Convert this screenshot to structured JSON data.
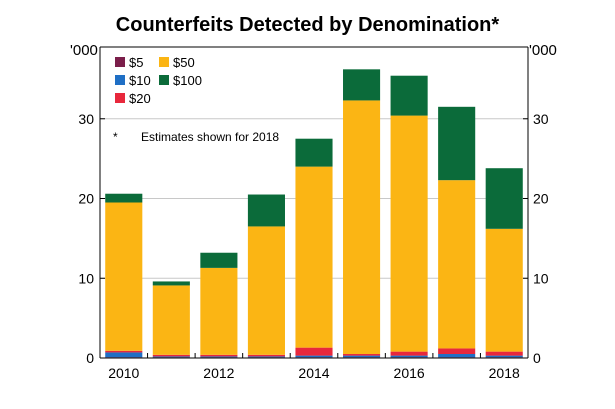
{
  "chart_data": {
    "type": "bar",
    "stacked": true,
    "title": "Counterfeits Detected by Denomination*",
    "units_left": "'000",
    "units_right": "'000",
    "categories": [
      "2010",
      "2011",
      "2012",
      "2013",
      "2014",
      "2015",
      "2016",
      "2017",
      "2018"
    ],
    "x_tick_labels": [
      "2010",
      "2012",
      "2014",
      "2016",
      "2018"
    ],
    "y_ticks": [
      0,
      10,
      20,
      30
    ],
    "ylim": [
      0,
      39
    ],
    "grid": true,
    "legend_position": "top-left",
    "note_marker": "*",
    "note": "Estimates shown for 2018",
    "series": [
      {
        "name": "$5",
        "color": "#7b1e4a",
        "values": [
          0.1,
          0.1,
          0.1,
          0.1,
          0.1,
          0.1,
          0.1,
          0.1,
          0.1
        ]
      },
      {
        "name": "$10",
        "color": "#1f6fc5",
        "values": [
          0.6,
          0.1,
          0.1,
          0.1,
          0.2,
          0.2,
          0.2,
          0.4,
          0.2
        ]
      },
      {
        "name": "$20",
        "color": "#e8283c",
        "values": [
          0.2,
          0.2,
          0.2,
          0.2,
          1.0,
          0.2,
          0.5,
          0.7,
          0.5
        ]
      },
      {
        "name": "$50",
        "color": "#fbb514",
        "values": [
          18.6,
          8.7,
          10.9,
          16.1,
          22.7,
          31.8,
          29.6,
          21.1,
          15.4
        ]
      },
      {
        "name": "$100",
        "color": "#0b6b3a",
        "values": [
          1.1,
          0.5,
          1.9,
          4.0,
          3.5,
          3.9,
          5.0,
          9.2,
          7.6
        ]
      }
    ]
  }
}
